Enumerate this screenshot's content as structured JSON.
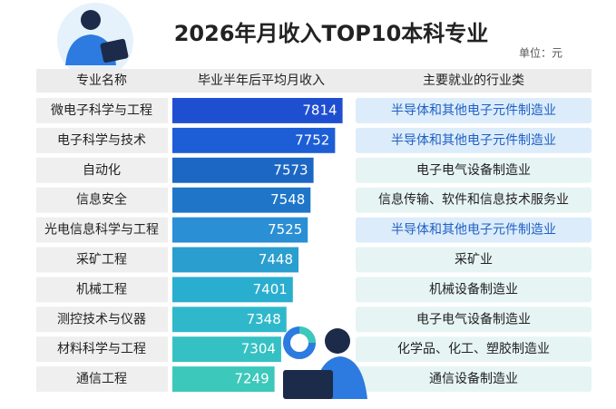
{
  "chart_data": {
    "type": "bar",
    "title": "2026年月收入TOP10本科专业",
    "unit": "单位：元",
    "headers": [
      "专业名称",
      "毕业半年后平均月收入",
      "主要就业的行业类"
    ],
    "categories": [
      "微电子科学与工程",
      "电子科学与技术",
      "自动化",
      "信息安全",
      "光电信息科学与工程",
      "采矿工程",
      "机械工程",
      "测控技术与仪器",
      "材料科学与工程",
      "通信工程"
    ],
    "values": [
      7814,
      7752,
      7573,
      7548,
      7525,
      7448,
      7401,
      7348,
      7304,
      7249
    ],
    "industries": [
      "半导体和其他电子元件制造业",
      "半导体和其他电子元件制造业",
      "电子电气设备制造业",
      "信息传输、软件和信息技术服务业",
      "半导体和其他电子元件制造业",
      "采矿业",
      "机械设备制造业",
      "电子电气设备制造业",
      "化学品、化工、塑胶制造业",
      "通信设备制造业"
    ],
    "colors": [
      "#1f4fd1",
      "#1d5ed6",
      "#1c67c4",
      "#1f76c8",
      "#2a8fd4",
      "#2a9ecf",
      "#2aaecf",
      "#2fb8cb",
      "#35c1c3",
      "#3cc8bb"
    ],
    "xlim": [
      6400,
      7900
    ]
  }
}
